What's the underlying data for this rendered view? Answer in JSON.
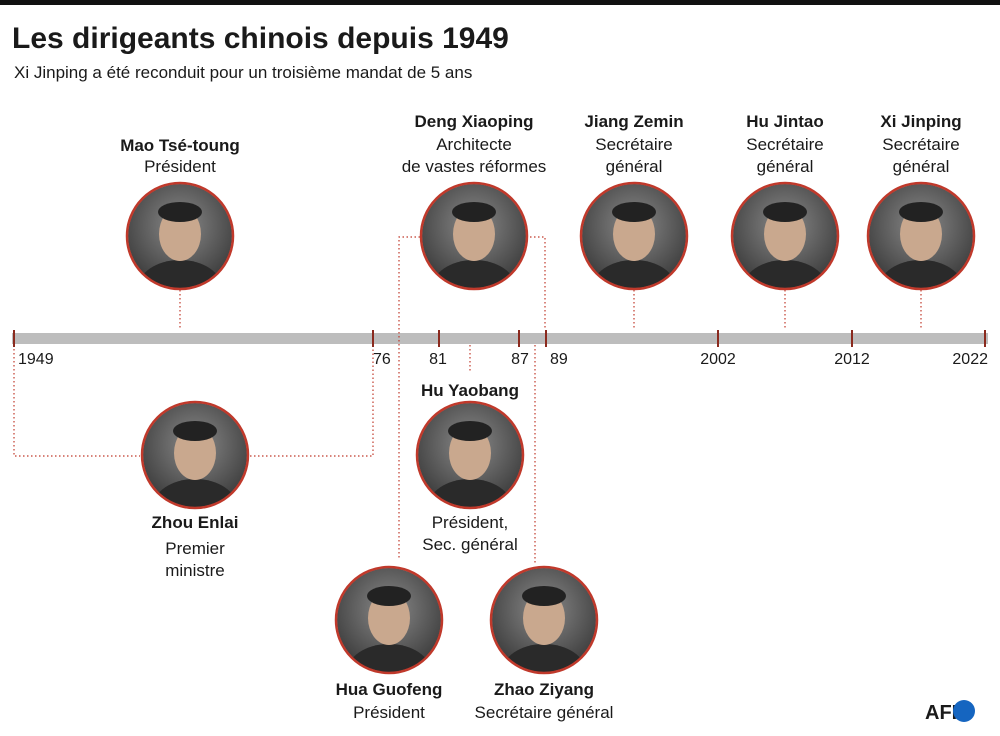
{
  "header": {
    "title": "Les dirigeants chinois depuis 1949",
    "subtitle": "Xi Jinping a été reconduit pour un troisième mandat de 5 ans"
  },
  "timeline": {
    "labels": [
      "1949",
      "76",
      "81",
      "87",
      "89",
      "2002",
      "2012",
      "2022"
    ]
  },
  "leaders": [
    {
      "name": "Mao Tsé-toung",
      "role": [
        "Président"
      ]
    },
    {
      "name": "Deng Xiaoping",
      "role": [
        "Architecte",
        "de vastes réformes"
      ]
    },
    {
      "name": "Jiang Zemin",
      "role": [
        "Secrétaire",
        "général"
      ]
    },
    {
      "name": "Hu Jintao",
      "role": [
        "Secrétaire",
        "général"
      ]
    },
    {
      "name": "Xi Jinping",
      "role": [
        "Secrétaire",
        "général"
      ]
    },
    {
      "name": "Zhou Enlai",
      "role": [
        "Premier",
        "ministre"
      ]
    },
    {
      "name": "Hu Yaobang",
      "role": [
        "Président,",
        "Sec. général"
      ]
    },
    {
      "name": "Hua Guofeng",
      "role": [
        "Président"
      ]
    },
    {
      "name": "Zhao Ziyang",
      "role": [
        "Secrétaire général"
      ]
    }
  ],
  "credit": "AFP"
}
